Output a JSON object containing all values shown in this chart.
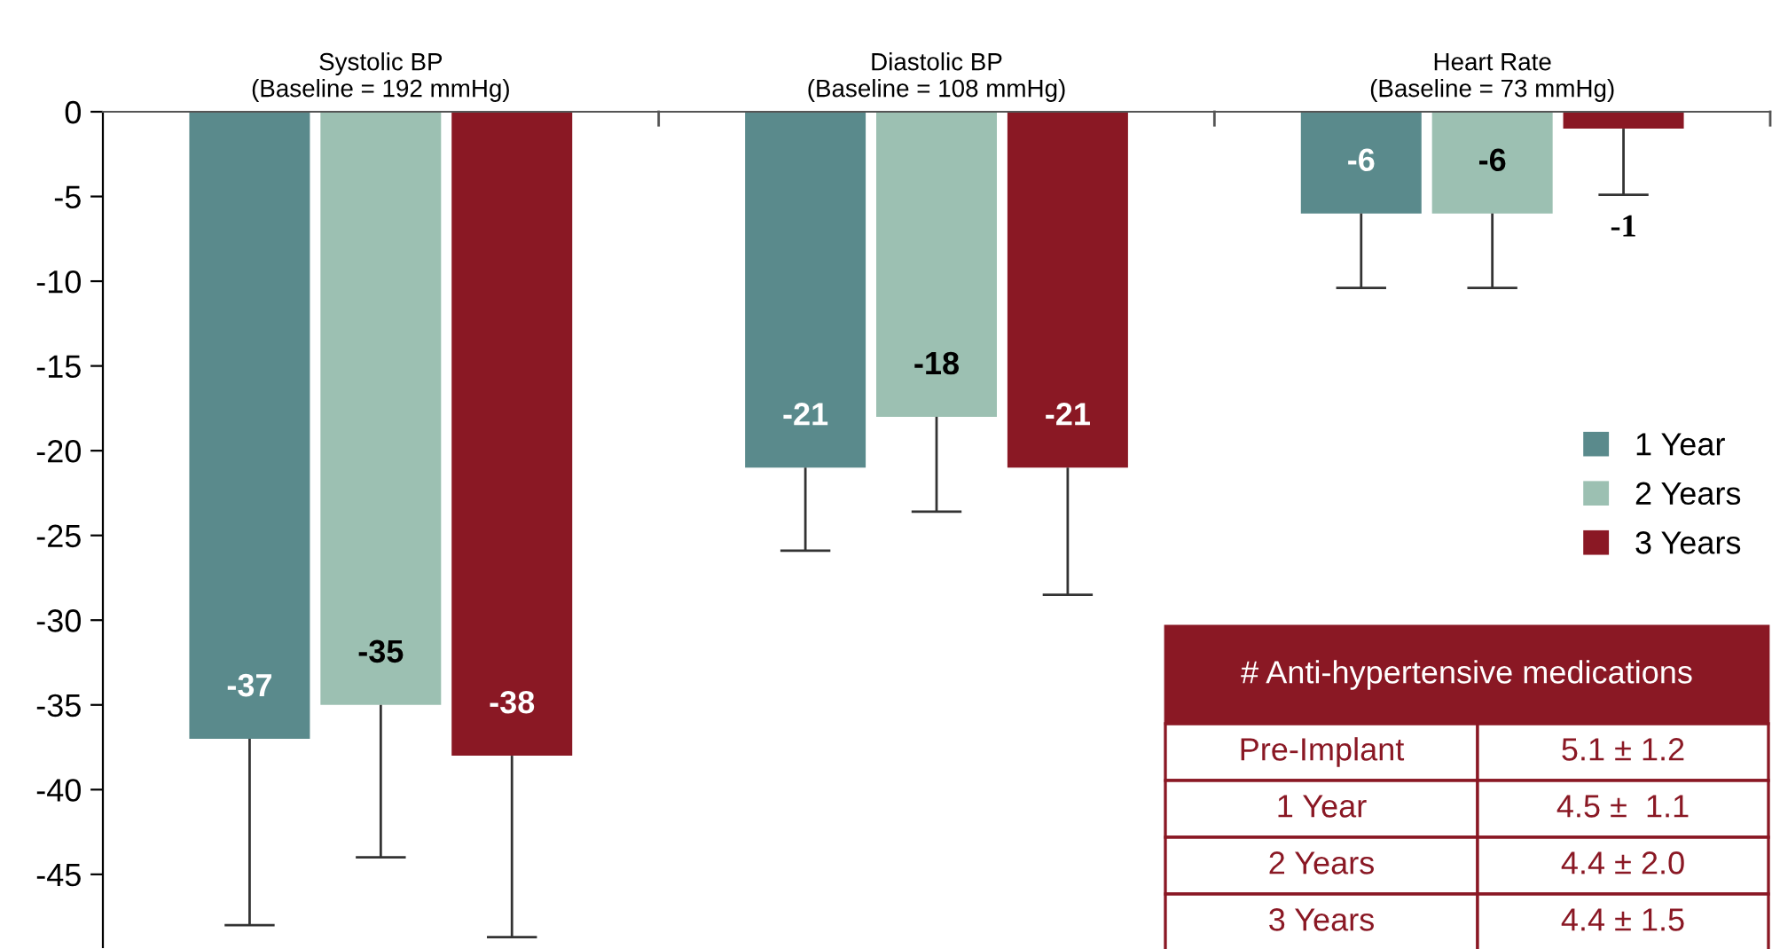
{
  "chart_data": {
    "type": "bar",
    "categories": [
      "Systolic BP\n(Baseline = 192 mmHg)",
      "Diastolic BP\n(Baseline = 108 mmHg)",
      "Heart Rate\n(Baseline = 73 mmHg)"
    ],
    "series": [
      {
        "name": "1 Year",
        "color": "#5a8a8c",
        "values": [
          -37,
          -21,
          -6
        ],
        "errors": [
          [
            -48,
            -37
          ],
          [
            -25.9,
            -21
          ],
          [
            -10.4,
            -6
          ]
        ]
      },
      {
        "name": "2 Years",
        "color": "#9cc0b2",
        "values": [
          -35,
          -18,
          -6
        ],
        "errors": [
          [
            -44,
            -35
          ],
          [
            -23.6,
            -18
          ],
          [
            -10.4,
            -6
          ]
        ]
      },
      {
        "name": "3 Years",
        "color": "#8a1824",
        "values": [
          -38,
          -21,
          -1
        ],
        "errors": [
          [
            -48.7,
            -38
          ],
          [
            -28.5,
            -21
          ],
          [
            -4.9,
            -1
          ]
        ]
      }
    ],
    "ylim": [
      -49.3,
      0
    ],
    "yticks": [
      0,
      -5,
      -10,
      -15,
      -20,
      -25,
      -30,
      -35,
      -40,
      -45
    ],
    "data_labels": true,
    "legend": "right",
    "grid": false,
    "annotations": [
      "# Anti-hypertensive medications",
      "Pre-Implant",
      "5.1 ± 1.2",
      "1 Year",
      "4.5 ±  1.1",
      "2 Years",
      "4.4 ± 2.0",
      "3 Years",
      "4.4 ± 1.5"
    ]
  }
}
